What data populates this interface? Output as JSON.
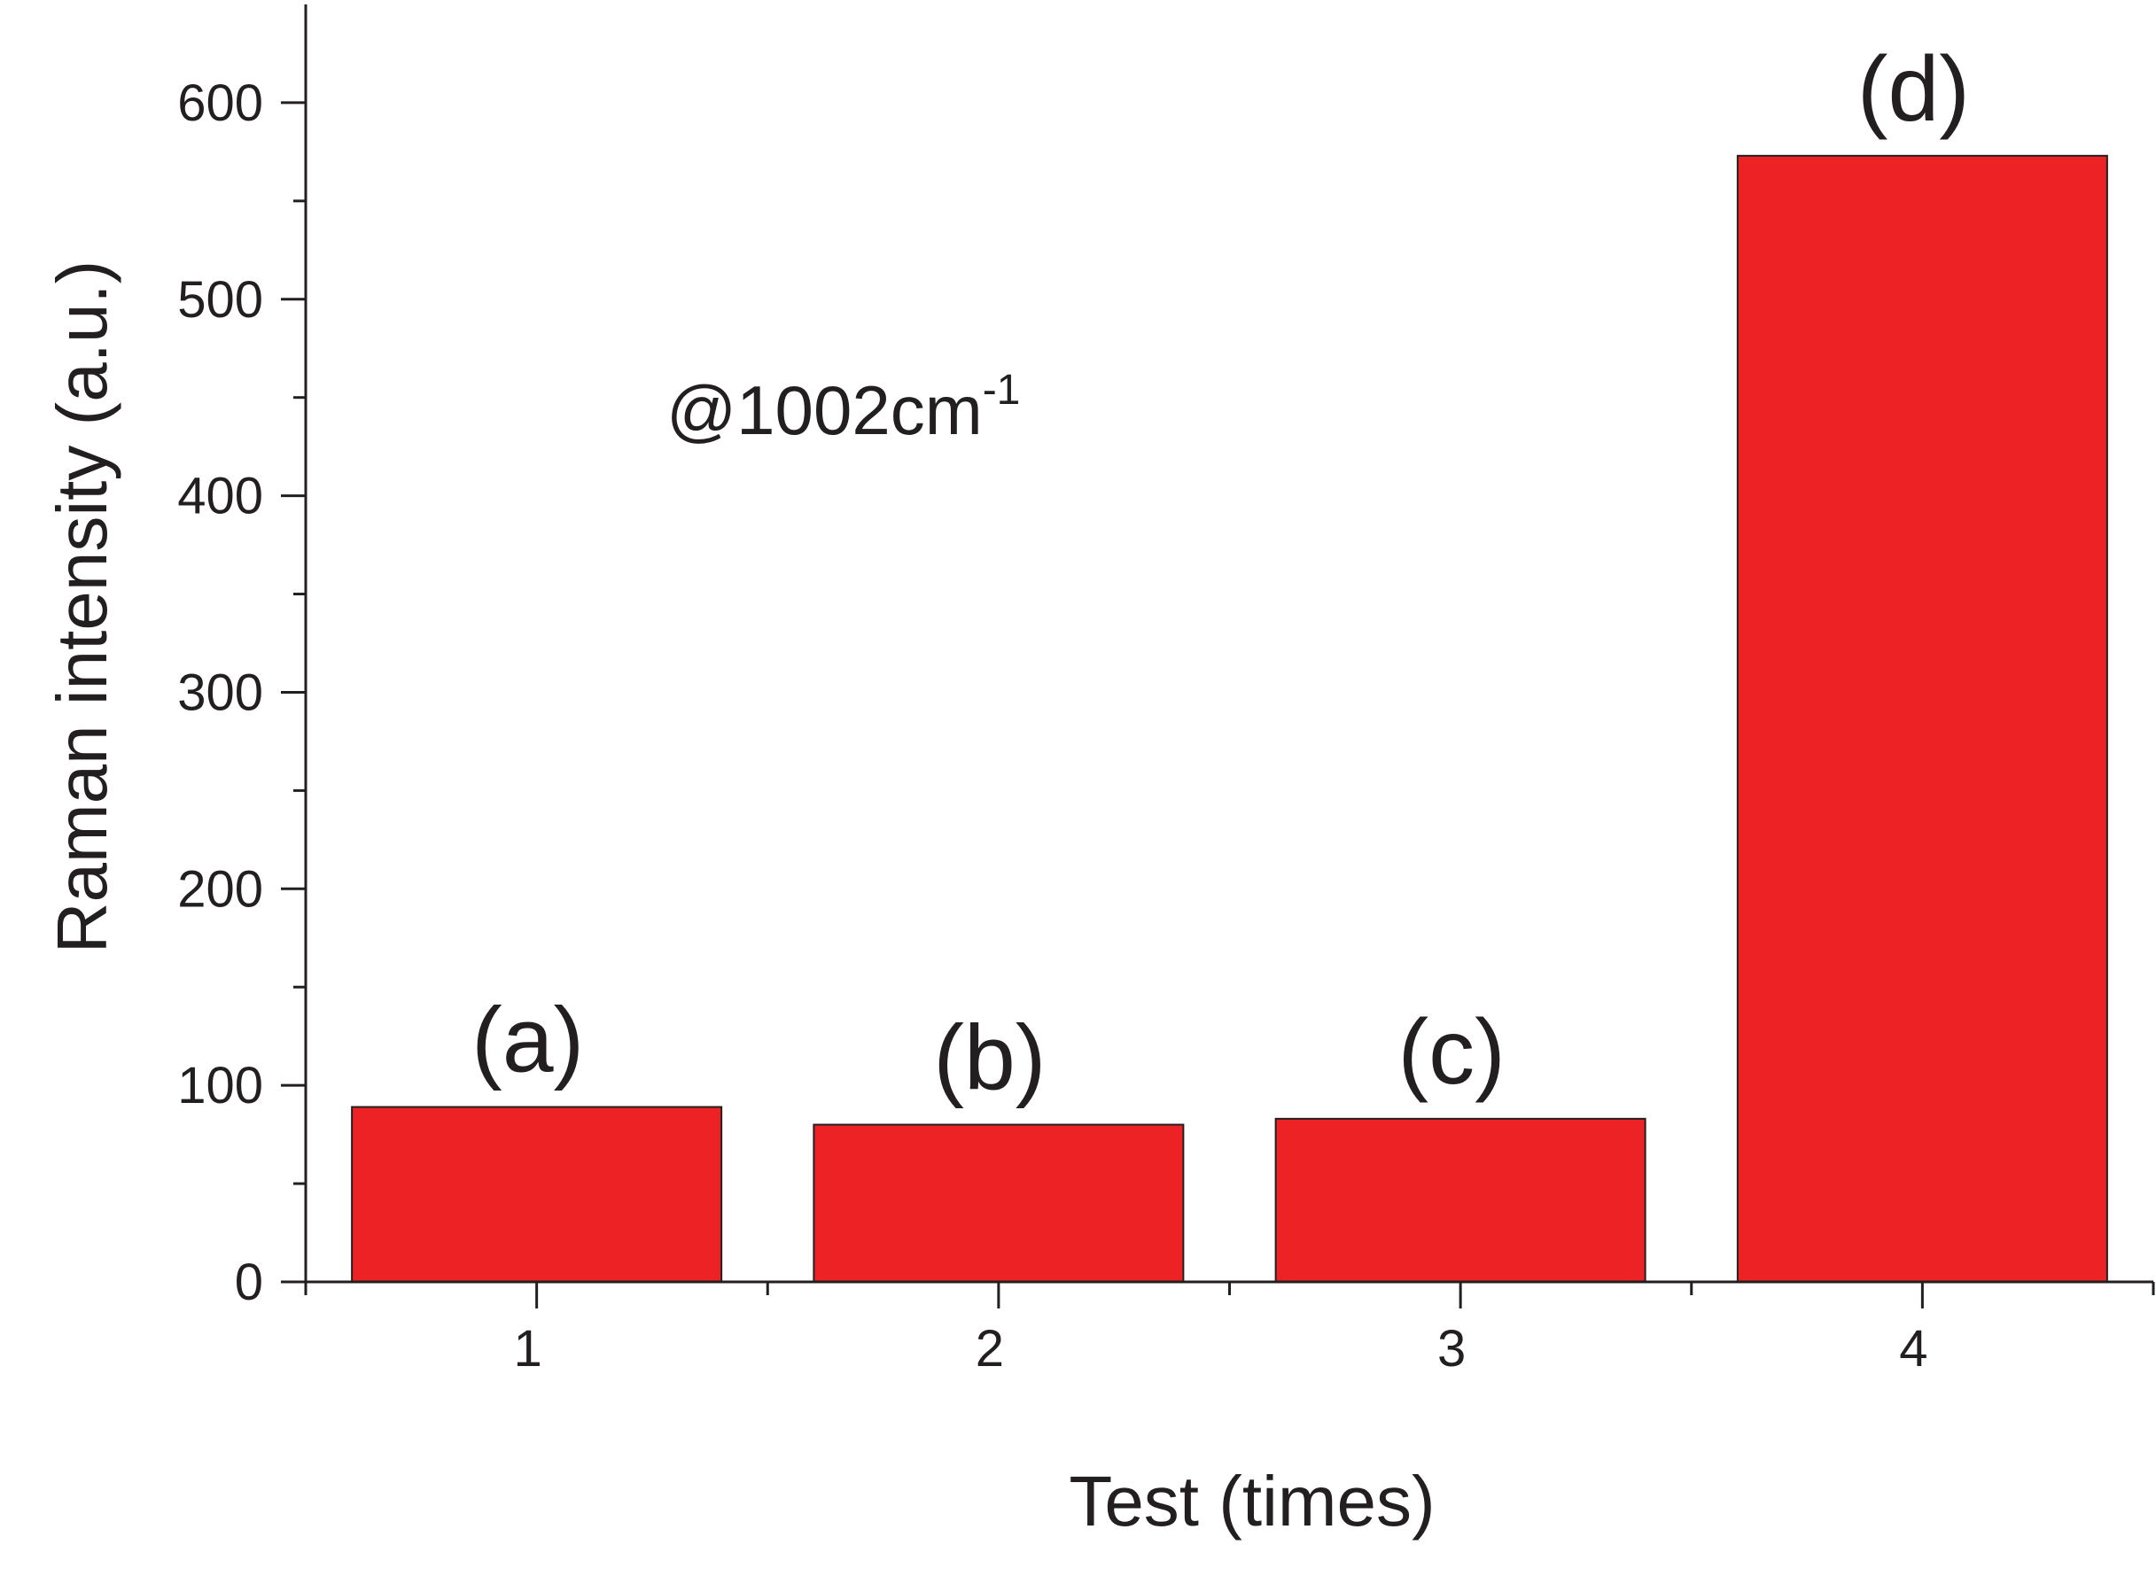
{
  "chart_data": {
    "type": "bar",
    "categories": [
      "1",
      "2",
      "3",
      "4"
    ],
    "values": [
      89,
      80,
      83,
      573
    ],
    "bar_labels": [
      "(a)",
      "(b)",
      "(c)",
      "(d)"
    ],
    "title": "",
    "xlabel": "Test (times)",
    "ylabel": "Raman intensity (a.u.)",
    "ylim": [
      0,
      650
    ],
    "yticks": [
      0,
      100,
      200,
      300,
      400,
      500,
      600
    ],
    "y_minor_step": 50,
    "grid": false,
    "annotation": {
      "text": "@1002cm",
      "superscript": "-1"
    },
    "colors": {
      "bar": "#ed2224",
      "bar_edge": "#231f20",
      "axis": "#231f20"
    }
  }
}
